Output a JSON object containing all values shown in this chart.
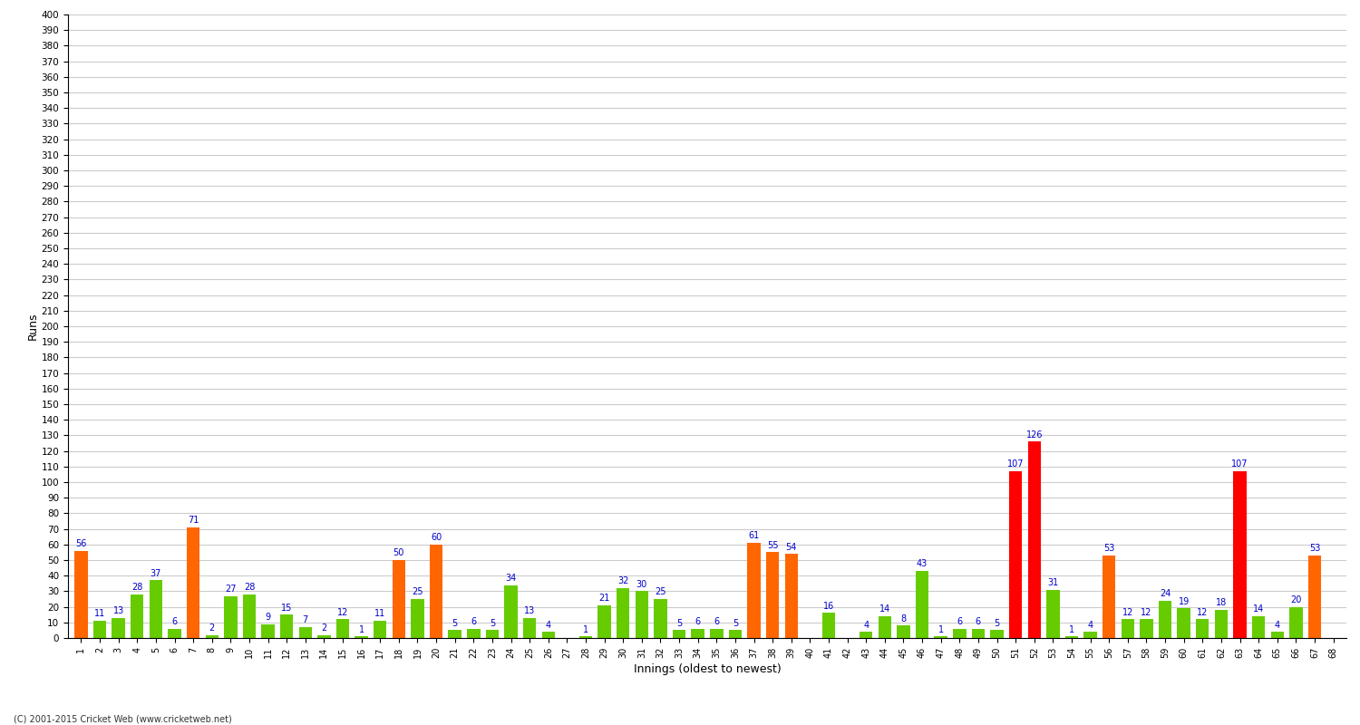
{
  "xlabel": "Innings (oldest to newest)",
  "ylabel": "Runs",
  "background_color": "#ffffff",
  "grid_color": "#cccccc",
  "ylim": [
    0,
    400
  ],
  "yticks": [
    0,
    10,
    20,
    30,
    40,
    50,
    60,
    70,
    80,
    90,
    100,
    110,
    120,
    130,
    140,
    150,
    160,
    170,
    180,
    190,
    200,
    210,
    220,
    230,
    240,
    250,
    260,
    270,
    280,
    290,
    300,
    310,
    320,
    330,
    340,
    350,
    360,
    370,
    380,
    390,
    400
  ],
  "innings": [
    1,
    2,
    3,
    4,
    5,
    6,
    7,
    8,
    9,
    10,
    11,
    12,
    13,
    14,
    15,
    16,
    17,
    18,
    19,
    20,
    21,
    22,
    23,
    24,
    25,
    26,
    27,
    28,
    29,
    30,
    31,
    32,
    33,
    34,
    35,
    36,
    37,
    38,
    39,
    40,
    41,
    42,
    43,
    44,
    45,
    46,
    47,
    48,
    49,
    50,
    51,
    52,
    53,
    54,
    55,
    56,
    57,
    58,
    59,
    60,
    61,
    62,
    63,
    64,
    65,
    66,
    67,
    68
  ],
  "values": [
    56,
    11,
    13,
    28,
    37,
    6,
    71,
    2,
    27,
    28,
    9,
    15,
    7,
    2,
    12,
    1,
    11,
    50,
    25,
    60,
    5,
    6,
    5,
    34,
    13,
    4,
    0,
    1,
    21,
    32,
    30,
    25,
    5,
    6,
    6,
    5,
    61,
    55,
    54,
    0,
    16,
    0,
    4,
    14,
    8,
    43,
    1,
    6,
    6,
    5,
    107,
    126,
    31,
    1,
    4,
    53,
    12,
    12,
    24,
    19,
    12,
    18,
    107,
    14,
    4,
    20,
    53,
    0
  ],
  "colors": [
    "#ff6600",
    "#66cc00",
    "#66cc00",
    "#66cc00",
    "#66cc00",
    "#66cc00",
    "#ff6600",
    "#66cc00",
    "#66cc00",
    "#66cc00",
    "#66cc00",
    "#66cc00",
    "#66cc00",
    "#66cc00",
    "#66cc00",
    "#66cc00",
    "#66cc00",
    "#ff6600",
    "#66cc00",
    "#ff6600",
    "#66cc00",
    "#66cc00",
    "#66cc00",
    "#66cc00",
    "#66cc00",
    "#66cc00",
    "#66cc00",
    "#66cc00",
    "#66cc00",
    "#66cc00",
    "#66cc00",
    "#66cc00",
    "#66cc00",
    "#66cc00",
    "#66cc00",
    "#66cc00",
    "#ff6600",
    "#ff6600",
    "#ff6600",
    "#66cc00",
    "#66cc00",
    "#66cc00",
    "#66cc00",
    "#66cc00",
    "#66cc00",
    "#66cc00",
    "#66cc00",
    "#66cc00",
    "#66cc00",
    "#66cc00",
    "#ff0000",
    "#ff0000",
    "#66cc00",
    "#66cc00",
    "#66cc00",
    "#ff6600",
    "#66cc00",
    "#66cc00",
    "#66cc00",
    "#66cc00",
    "#66cc00",
    "#66cc00",
    "#ff0000",
    "#66cc00",
    "#66cc00",
    "#66cc00",
    "#ff6600",
    "#66cc00"
  ],
  "label_color": "#0000cc",
  "label_fontsize": 7,
  "bar_width": 0.7,
  "footer": "(C) 2001-2015 Cricket Web (www.cricketweb.net)"
}
